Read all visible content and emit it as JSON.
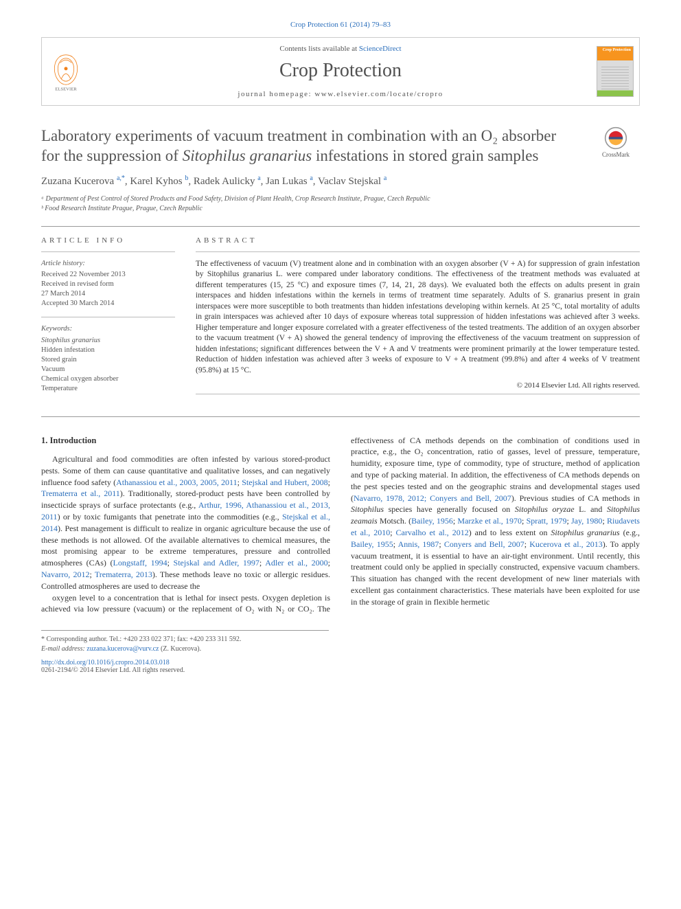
{
  "citation": "Crop Protection 61 (2014) 79–83",
  "header": {
    "contents_prefix": "Contents lists available at ",
    "contents_link": "ScienceDirect",
    "journal_title": "Crop Protection",
    "homepage_label": "journal homepage: www.elsevier.com/locate/cropro",
    "cover_brand": "Crop\nProtection"
  },
  "crossmark_label": "CrossMark",
  "article": {
    "title_html": "Laboratory experiments of vacuum treatment in combination with an O₂ absorber for the suppression of <i>Sitophilus granarius</i> infestations in stored grain samples",
    "authors_html": "Zuzana Kucerova <sup>a,*</sup>, Karel Kyhos <sup>b</sup>, Radek Aulicky <sup>a</sup>, Jan Lukas <sup>a</sup>, Vaclav Stejskal <sup>a</sup>",
    "affiliations": [
      "ᵃ Department of Pest Control of Stored Products and Food Safety, Division of Plant Health, Crop Research Institute, Prague, Czech Republic",
      "ᵇ Food Research Institute Prague, Prague, Czech Republic"
    ]
  },
  "info": {
    "heading": "ARTICLE INFO",
    "history_label": "Article history:",
    "history": [
      "Received 22 November 2013",
      "Received in revised form",
      "27 March 2014",
      "Accepted 30 March 2014"
    ],
    "keywords_label": "Keywords:",
    "keywords": [
      "Sitophilus granarius",
      "Hidden infestation",
      "Stored grain",
      "Vacuum",
      "Chemical oxygen absorber",
      "Temperature"
    ]
  },
  "abstract": {
    "heading": "ABSTRACT",
    "text": "The effectiveness of vacuum (V) treatment alone and in combination with an oxygen absorber (V + A) for suppression of grain infestation by Sitophilus granarius L. were compared under laboratory conditions. The effectiveness of the treatment methods was evaluated at different temperatures (15, 25 °C) and exposure times (7, 14, 21, 28 days). We evaluated both the effects on adults present in grain interspaces and hidden infestations within the kernels in terms of treatment time separately. Adults of S. granarius present in grain interspaces were more susceptible to both treatments than hidden infestations developing within kernels. At 25 °C, total mortality of adults in grain interspaces was achieved after 10 days of exposure whereas total suppression of hidden infestations was achieved after 3 weeks. Higher temperature and longer exposure correlated with a greater effectiveness of the tested treatments. The addition of an oxygen absorber to the vacuum treatment (V + A) showed the general tendency of improving the effectiveness of the vacuum treatment on suppression of hidden infestations; significant differences between the V + A and V treatments were prominent primarily at the lower temperature tested. Reduction of hidden infestation was achieved after 3 weeks of exposure to V + A treatment (99.8%) and after 4 weeks of V treatment (95.8%) at 15 °C.",
    "copyright": "© 2014 Elsevier Ltd. All rights reserved."
  },
  "section1": {
    "heading": "1. Introduction",
    "p1_html": "Agricultural and food commodities are often infested by various stored-product pests. Some of them can cause quantitative and qualitative losses, and can negatively influence food safety (<span class='ref-link'>Athanassiou et al., 2003, 2005, 2011</span>; <span class='ref-link'>Stejskal and Hubert, 2008</span>; <span class='ref-link'>Trematerra et al., 2011</span>). Traditionally, stored-product pests have been controlled by insecticide sprays of surface protectants (e.g., <span class='ref-link'>Arthur, 1996, Athanassiou et al., 2013, 2011</span>) or by toxic fumigants that penetrate into the commodities (e.g., <span class='ref-link'>Stejskal et al., 2014</span>). Pest management is difficult to realize in organic agriculture because the use of these methods is not allowed. Of the available alternatives to chemical measures, the most promising appear to be extreme temperatures, pressure and controlled atmospheres (CAs) (<span class='ref-link'>Longstaff, 1994</span>; <span class='ref-link'>Stejskal and Adler, 1997</span>; <span class='ref-link'>Adler et al., 2000</span>; <span class='ref-link'>Navarro, 2012</span>; <span class='ref-link'>Trematerra, 2013</span>). These methods leave no toxic or allergic residues. Controlled atmospheres are used to decrease the",
    "p2_html": "oxygen level to a concentration that is lethal for insect pests. Oxygen depletion is achieved via low pressure (vacuum) or the replacement of O₂ with N₂ or CO₂. The effectiveness of CA methods depends on the combination of conditions used in practice, e.g., the O₂ concentration, ratio of gasses, level of pressure, temperature, humidity, exposure time, type of commodity, type of structure, method of application and type of packing material. In addition, the effectiveness of CA methods depends on the pest species tested and on the geographic strains and developmental stages used (<span class='ref-link'>Navarro, 1978, 2012; Conyers and Bell, 2007</span>). Previous studies of CA methods in <i>Sitophilus</i> species have generally focused on <i>Sitophilus oryzae</i> L. and <i>Sitophilus zeamais</i> Motsch. (<span class='ref-link'>Bailey, 1956</span>; <span class='ref-link'>Marzke et al., 1970</span>; <span class='ref-link'>Spratt, 1979</span>; <span class='ref-link'>Jay, 1980</span>; <span class='ref-link'>Riudavets et al., 2010</span>; <span class='ref-link'>Carvalho et al., 2012</span>) and to less extent on <i>Sitophilus granarius</i> (e.g., <span class='ref-link'>Bailey, 1955</span>; <span class='ref-link'>Annis, 1987</span>; <span class='ref-link'>Conyers and Bell, 2007</span>; <span class='ref-link'>Kucerova et al., 2013</span>). To apply vacuum treatment, it is essential to have an air-tight environment. Until recently, this treatment could only be applied in specially constructed, expensive vacuum chambers. This situation has changed with the recent development of new liner materials with excellent gas containment characteristics. These materials have been exploited for use in the storage of grain in flexible hermetic"
  },
  "footnotes": {
    "corresponding": "* Corresponding author. Tel.: +420 233 022 371; fax: +420 233 311 592.",
    "email_label": "E-mail address: ",
    "email": "zuzana.kucerova@vurv.cz",
    "email_suffix": " (Z. Kucerova)."
  },
  "doi": {
    "url": "http://dx.doi.org/10.1016/j.cropro.2014.03.018",
    "issn_line": "0261-2194/© 2014 Elsevier Ltd. All rights reserved."
  },
  "colors": {
    "link": "#2a6ebb",
    "text": "#333333",
    "muted": "#555555",
    "rule": "#999999",
    "elsevier_orange": "#f1811b"
  }
}
